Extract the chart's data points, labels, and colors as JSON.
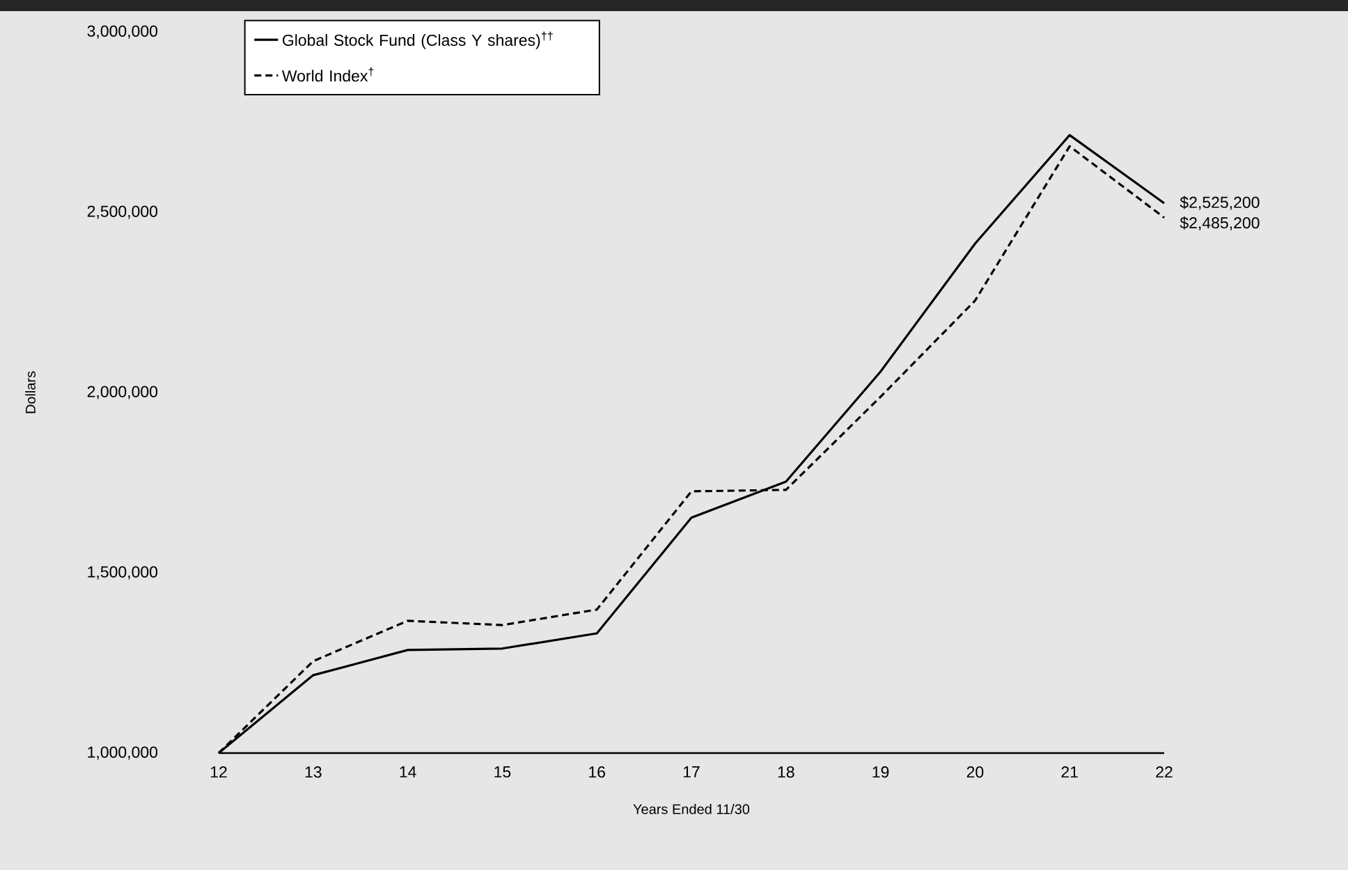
{
  "chart_data": {
    "type": "line",
    "xlabel": "Years Ended 11/30",
    "ylabel": "Dollars",
    "categories": [
      "12",
      "13",
      "14",
      "15",
      "16",
      "17",
      "18",
      "19",
      "20",
      "21",
      "22"
    ],
    "series": [
      {
        "name": "Global Stock Fund (Class Y shares)$^{††}$",
        "color": "#000000",
        "line_style": "solid",
        "values": [
          1000000,
          1216000,
          1286000,
          1290000,
          1332000,
          1653000,
          1753000,
          2058000,
          2413000,
          2714000,
          2525200
        ],
        "value_labels": [
          null,
          null,
          null,
          null,
          null,
          null,
          null,
          null,
          null,
          null,
          "$2,525,200"
        ]
      },
      {
        "name": "World Index$^{†}$",
        "color": "#000000",
        "line_style": "dashed",
        "values": [
          1000000,
          1255000,
          1367000,
          1355000,
          1398000,
          1726000,
          1730000,
          1988000,
          2255000,
          2683000,
          2485200
        ],
        "value_labels": [
          null,
          null,
          null,
          null,
          null,
          null,
          null,
          null,
          null,
          null,
          "$2,485,200"
        ]
      }
    ],
    "ylim": [
      1000000,
      3000000
    ],
    "yticks": [
      {
        "value": 1000000,
        "label": "1,000,000"
      },
      {
        "value": 1500000,
        "label": "1,500,000"
      },
      {
        "value": 2000000,
        "label": "2,000,000"
      },
      {
        "value": 2500000,
        "label": "2,500,000"
      },
      {
        "value": 3000000,
        "label": "3,000,000"
      }
    ],
    "grid": false,
    "legend": "top left",
    "marker": "none"
  }
}
